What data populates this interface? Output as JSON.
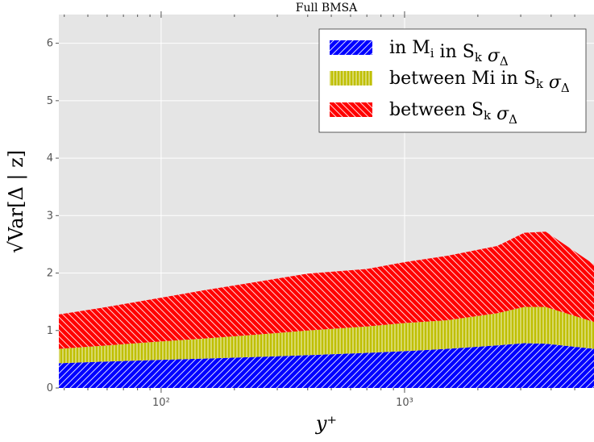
{
  "chart_data": {
    "type": "area",
    "title": "Full BMSA",
    "xlabel": "y⁺",
    "ylabel": "√Var[Δ | z]",
    "x_scale": "log",
    "xlim": [
      38,
      6000
    ],
    "ylim": [
      0,
      6.5
    ],
    "grid": true,
    "legend_position": "top-right",
    "y_ticks": [
      0,
      1,
      2,
      3,
      4,
      5,
      6
    ],
    "x_ticks": [
      100,
      1000
    ],
    "x_tick_labels": [
      "10²",
      "10³"
    ],
    "stacked": true,
    "x": [
      38,
      60,
      100,
      150,
      250,
      400,
      700,
      1000,
      1500,
      2400,
      3100,
      3800,
      6000
    ],
    "series": [
      {
        "name": "in Mᵢ in Sₖ σΔ",
        "color": "#0000ff",
        "hatch": "diagonal",
        "values": [
          0.43,
          0.46,
          0.49,
          0.51,
          0.54,
          0.57,
          0.61,
          0.64,
          0.68,
          0.74,
          0.78,
          0.77,
          0.68
        ]
      },
      {
        "name": "between Mi in Sₖ σΔ",
        "color": "#bfbf00",
        "hatch": "vertical",
        "values": [
          0.25,
          0.28,
          0.32,
          0.35,
          0.39,
          0.43,
          0.46,
          0.49,
          0.5,
          0.56,
          0.63,
          0.64,
          0.47
        ]
      },
      {
        "name": "between Sₖ σΔ",
        "color": "#ff0000",
        "hatch": "diagonal-back",
        "values": [
          0.6,
          0.67,
          0.76,
          0.84,
          0.92,
          0.99,
          1.0,
          1.06,
          1.12,
          1.17,
          1.29,
          1.31,
          1.0
        ]
      }
    ],
    "legend_labels": [
      {
        "main": "in M",
        "sub1": "i",
        "mid": " in S",
        "sub2": "k",
        "tail": " σ",
        "sub3": "Δ"
      },
      {
        "main": "between Mi in S",
        "sub1": "k",
        "mid": "",
        "sub2": "",
        "tail": " σ",
        "sub3": "Δ"
      },
      {
        "main": "between S",
        "sub1": "k",
        "mid": "",
        "sub2": "",
        "tail": " σ",
        "sub3": "Δ"
      }
    ]
  }
}
